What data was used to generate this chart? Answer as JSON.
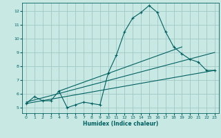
{
  "xlabel": "Humidex (Indice chaleur)",
  "ylabel": "",
  "bg_color": "#c8e8e4",
  "grid_color": "#a0c8c4",
  "line_color": "#006060",
  "xlim": [
    -0.5,
    23.5
  ],
  "ylim": [
    4.6,
    12.6
  ],
  "xticks": [
    0,
    1,
    2,
    3,
    4,
    5,
    6,
    7,
    8,
    9,
    10,
    11,
    12,
    13,
    14,
    15,
    16,
    17,
    18,
    19,
    20,
    21,
    22,
    23
  ],
  "yticks": [
    5,
    6,
    7,
    8,
    9,
    10,
    11,
    12
  ],
  "main_x": [
    0,
    1,
    2,
    3,
    4,
    5,
    6,
    7,
    8,
    9,
    10,
    11,
    12,
    13,
    14,
    15,
    16,
    17,
    18,
    19,
    20,
    21,
    22,
    23
  ],
  "main_y": [
    5.3,
    5.8,
    5.5,
    5.5,
    6.2,
    5.0,
    5.2,
    5.4,
    5.3,
    5.2,
    7.5,
    8.8,
    10.5,
    11.5,
    11.9,
    12.4,
    11.9,
    10.5,
    9.4,
    8.9,
    8.5,
    8.3,
    7.7,
    7.7
  ],
  "line1_x": [
    0,
    23
  ],
  "line1_y": [
    5.3,
    7.7
  ],
  "line2_x": [
    0,
    23
  ],
  "line2_y": [
    5.4,
    9.0
  ],
  "line3_x": [
    4,
    19
  ],
  "line3_y": [
    6.2,
    9.4
  ]
}
